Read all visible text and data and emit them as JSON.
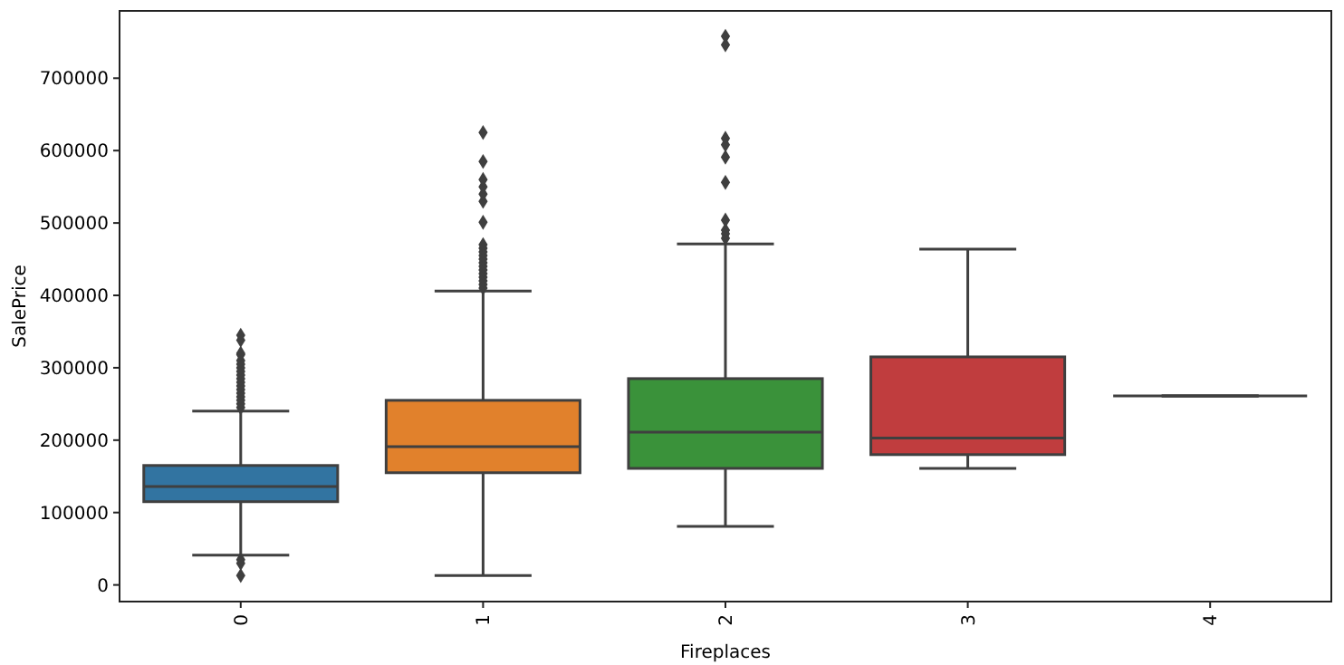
{
  "chart_data": {
    "type": "box",
    "xlabel": "Fireplaces",
    "ylabel": "SalePrice",
    "categories": [
      "0",
      "1",
      "2",
      "3",
      "4"
    ],
    "colors": [
      "#3274a1",
      "#e1812c",
      "#3a923a",
      "#c03d3e",
      null
    ],
    "marker": "diamond",
    "boxes": [
      {
        "low": 41000,
        "q1": 115000,
        "median": 136000,
        "q3": 165000,
        "high": 240000,
        "outliers": [
          245000,
          250000,
          255000,
          260000,
          265000,
          270000,
          275000,
          280000,
          285000,
          290000,
          295000,
          300000,
          305000,
          310000,
          318000,
          320000,
          338000,
          345000,
          35000,
          30000,
          13000
        ]
      },
      {
        "low": 13000,
        "q1": 155000,
        "median": 191000,
        "q3": 255000,
        "high": 406000,
        "outliers": [
          410000,
          415000,
          420000,
          425000,
          430000,
          435000,
          440000,
          445000,
          450000,
          455000,
          460000,
          465000,
          470000,
          501000,
          530000,
          540000,
          550000,
          560000,
          585000,
          625000
        ]
      },
      {
        "low": 81000,
        "q1": 161000,
        "median": 211000,
        "q3": 285000,
        "high": 471000,
        "outliers": [
          479000,
          485000,
          490000,
          504000,
          556000,
          591000,
          608000,
          617000,
          746000,
          758000
        ]
      },
      {
        "low": 161000,
        "q1": 180000,
        "median": 203000,
        "q3": 315000,
        "high": 464000
      },
      {
        "low": 261000,
        "q1": 261000,
        "median": 261000,
        "q3": 261000,
        "high": 261000
      }
    ],
    "ylim": [
      -23000,
      793000
    ],
    "yticks": [
      0,
      100000,
      200000,
      300000,
      400000,
      500000,
      600000,
      700000
    ]
  }
}
